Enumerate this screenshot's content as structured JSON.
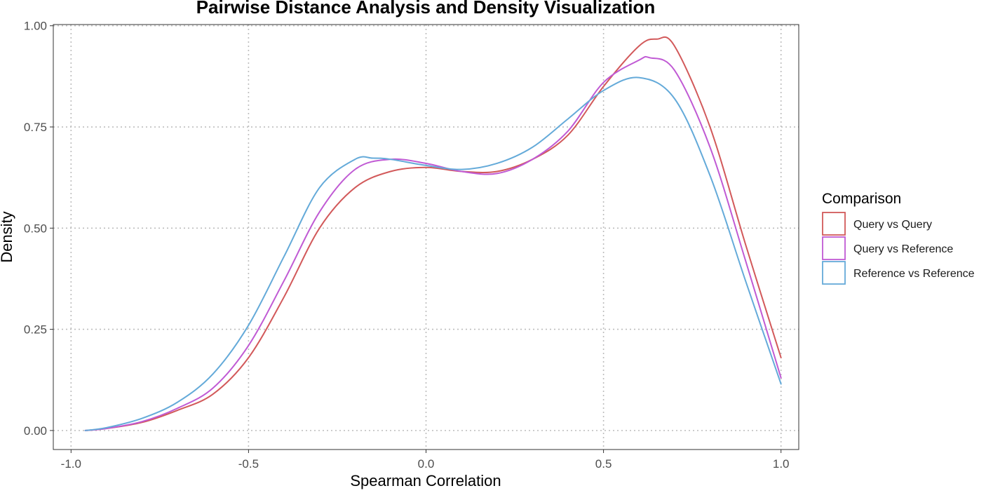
{
  "chart_data": {
    "type": "line",
    "title": "Pairwise Distance Analysis and Density Visualization",
    "xlabel": "Spearman Correlation",
    "ylabel": "Density",
    "xlim": [
      -1.05,
      1.05
    ],
    "ylim": [
      -0.047,
      1.003
    ],
    "x_ticks": [
      -1.0,
      -0.5,
      0.0,
      0.5,
      1.0
    ],
    "x_tick_labels": [
      "-1.0",
      "-0.5",
      "0.0",
      "0.5",
      "1.0"
    ],
    "y_ticks": [
      0.0,
      0.25,
      0.5,
      0.75,
      1.0
    ],
    "y_tick_labels": [
      "0.00",
      "0.25",
      "0.50",
      "0.75",
      "1.00"
    ],
    "grid": true,
    "legend_title": "Comparison",
    "legend_position": "right",
    "series": [
      {
        "name": "Query vs Query",
        "color": "#d2595a",
        "x": [
          -0.96,
          -0.9,
          -0.8,
          -0.7,
          -0.6,
          -0.5,
          -0.4,
          -0.3,
          -0.2,
          -0.1,
          0.0,
          0.1,
          0.2,
          0.3,
          0.4,
          0.5,
          0.6,
          0.65,
          0.7,
          0.8,
          0.9,
          1.0
        ],
        "y": [
          0.0,
          0.005,
          0.02,
          0.05,
          0.09,
          0.18,
          0.33,
          0.5,
          0.6,
          0.64,
          0.65,
          0.64,
          0.64,
          0.67,
          0.73,
          0.85,
          0.95,
          0.967,
          0.95,
          0.75,
          0.46,
          0.18
        ]
      },
      {
        "name": "Query vs Reference",
        "color": "#c05ad4",
        "x": [
          -0.96,
          -0.9,
          -0.8,
          -0.7,
          -0.6,
          -0.5,
          -0.4,
          -0.3,
          -0.2,
          -0.1,
          0.0,
          0.1,
          0.2,
          0.3,
          0.4,
          0.5,
          0.6,
          0.63,
          0.7,
          0.8,
          0.9,
          1.0
        ],
        "y": [
          0.0,
          0.005,
          0.022,
          0.055,
          0.105,
          0.21,
          0.37,
          0.54,
          0.645,
          0.67,
          0.66,
          0.64,
          0.635,
          0.67,
          0.74,
          0.86,
          0.915,
          0.921,
          0.89,
          0.7,
          0.42,
          0.13
        ]
      },
      {
        "name": "Reference vs Reference",
        "color": "#64aad9",
        "x": [
          -0.96,
          -0.9,
          -0.8,
          -0.7,
          -0.6,
          -0.5,
          -0.4,
          -0.3,
          -0.2,
          -0.15,
          -0.1,
          0.0,
          0.1,
          0.2,
          0.3,
          0.4,
          0.5,
          0.6,
          0.7,
          0.8,
          0.9,
          1.0
        ],
        "y": [
          0.0,
          0.007,
          0.03,
          0.07,
          0.14,
          0.26,
          0.43,
          0.6,
          0.67,
          0.673,
          0.67,
          0.655,
          0.645,
          0.66,
          0.7,
          0.77,
          0.84,
          0.872,
          0.82,
          0.63,
          0.37,
          0.115
        ]
      }
    ]
  }
}
